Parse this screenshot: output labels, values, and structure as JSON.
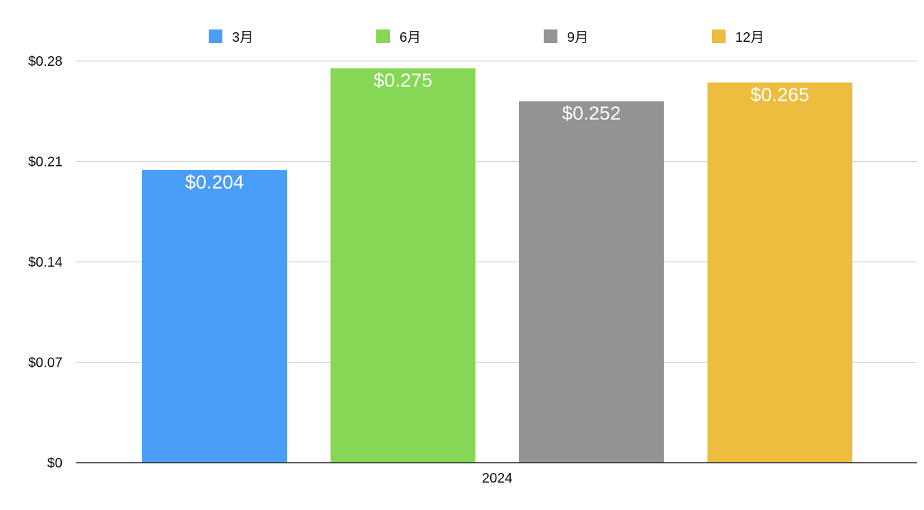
{
  "chart_data": {
    "type": "bar",
    "categories": [
      "2024"
    ],
    "series": [
      {
        "name": "3月",
        "values": [
          0.204
        ],
        "label": "$0.204",
        "color": "#4a9ef7"
      },
      {
        "name": "6月",
        "values": [
          0.275
        ],
        "label": "$0.275",
        "color": "#85d755"
      },
      {
        "name": "9月",
        "values": [
          0.252
        ],
        "label": "$0.252",
        "color": "#949494"
      },
      {
        "name": "12月",
        "values": [
          0.265
        ],
        "label": "$0.265",
        "color": "#edbd40"
      }
    ],
    "y_ticks": [
      {
        "value": 0,
        "label": "$0"
      },
      {
        "value": 0.07,
        "label": "$0.07"
      },
      {
        "value": 0.14,
        "label": "$0.14"
      },
      {
        "value": 0.21,
        "label": "$0.21"
      },
      {
        "value": 0.28,
        "label": "$0.28"
      }
    ],
    "ylim": [
      0,
      0.28
    ],
    "grid": true,
    "legend_position": "top-center",
    "title": "",
    "xlabel": "",
    "ylabel": ""
  }
}
